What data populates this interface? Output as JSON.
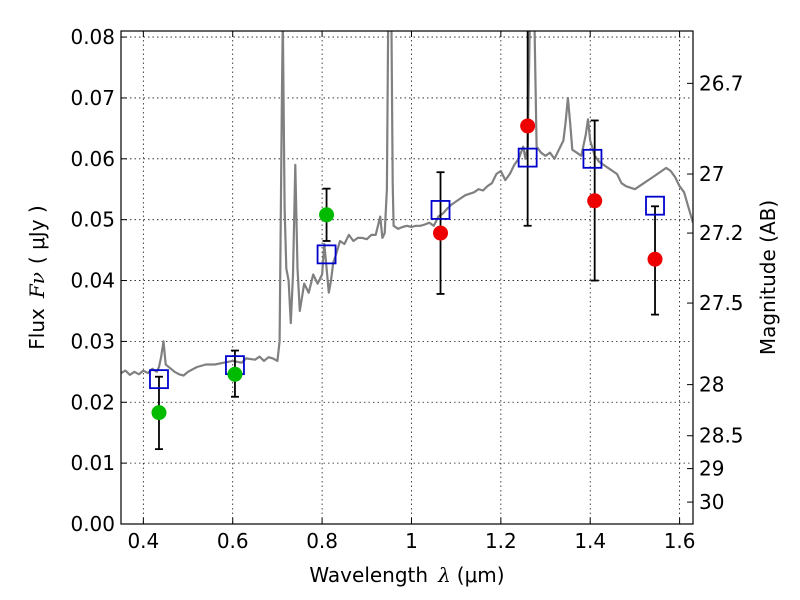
{
  "chart_data": {
    "type": "scatter",
    "title": "",
    "xlabel": {
      "prefix": "Wavelength",
      "math": "λ",
      "unit": "(μm)"
    },
    "ylabel": {
      "prefix": "Flux",
      "math": "Fν",
      "unit": "( μJy )"
    },
    "y2label": "Magnitude (AB)",
    "xlim": [
      0.35,
      1.63
    ],
    "ylim": [
      0.0,
      0.081
    ],
    "grid": true,
    "x_ticks": [
      {
        "value": 0.4,
        "label": "0.4"
      },
      {
        "value": 0.6,
        "label": "0.6"
      },
      {
        "value": 0.8,
        "label": "0.8"
      },
      {
        "value": 1.0,
        "label": "1"
      },
      {
        "value": 1.2,
        "label": "1.2"
      },
      {
        "value": 1.4,
        "label": "1.4"
      },
      {
        "value": 1.6,
        "label": "1.6"
      }
    ],
    "y_ticks": [
      {
        "value": 0.0,
        "label": "0.00"
      },
      {
        "value": 0.01,
        "label": "0.01"
      },
      {
        "value": 0.02,
        "label": "0.02"
      },
      {
        "value": 0.03,
        "label": "0.03"
      },
      {
        "value": 0.04,
        "label": "0.04"
      },
      {
        "value": 0.05,
        "label": "0.05"
      },
      {
        "value": 0.06,
        "label": "0.06"
      },
      {
        "value": 0.07,
        "label": "0.07"
      },
      {
        "value": 0.08,
        "label": "0.08"
      }
    ],
    "y2_ticks": [
      {
        "flux": 0.0724,
        "label": "26.7"
      },
      {
        "flux": 0.0575,
        "label": "27"
      },
      {
        "flux": 0.0478,
        "label": "27.2"
      },
      {
        "flux": 0.0363,
        "label": "27.5"
      },
      {
        "flux": 0.0229,
        "label": "28"
      },
      {
        "flux": 0.0145,
        "label": "28.5"
      },
      {
        "flux": 0.0091,
        "label": "29"
      },
      {
        "flux": 0.0036,
        "label": "30"
      }
    ],
    "colors": {
      "spectrum": "#808080",
      "model_box": "#0000cc",
      "green_point": "#00bb00",
      "red_point": "#ee0000",
      "error_bar": "#000000"
    },
    "series": [
      {
        "kind": "line",
        "color": "#808080",
        "points": [
          [
            0.35,
            0.0248
          ],
          [
            0.36,
            0.0252
          ],
          [
            0.37,
            0.0245
          ],
          [
            0.38,
            0.025
          ],
          [
            0.39,
            0.0246
          ],
          [
            0.4,
            0.0252
          ],
          [
            0.41,
            0.0248
          ],
          [
            0.42,
            0.0255
          ],
          [
            0.43,
            0.025
          ],
          [
            0.435,
            0.0258
          ],
          [
            0.44,
            0.0275
          ],
          [
            0.445,
            0.03
          ],
          [
            0.45,
            0.0262
          ],
          [
            0.46,
            0.0256
          ],
          [
            0.47,
            0.025
          ],
          [
            0.48,
            0.0246
          ],
          [
            0.49,
            0.0244
          ],
          [
            0.5,
            0.025
          ],
          [
            0.52,
            0.0258
          ],
          [
            0.54,
            0.0262
          ],
          [
            0.56,
            0.0262
          ],
          [
            0.58,
            0.0265
          ],
          [
            0.6,
            0.0268
          ],
          [
            0.62,
            0.0265
          ],
          [
            0.63,
            0.0272
          ],
          [
            0.65,
            0.027
          ],
          [
            0.66,
            0.0275
          ],
          [
            0.67,
            0.0268
          ],
          [
            0.68,
            0.0274
          ],
          [
            0.69,
            0.0272
          ],
          [
            0.7,
            0.0268
          ],
          [
            0.705,
            0.03
          ],
          [
            0.71,
            0.07
          ],
          [
            0.712,
            0.083
          ],
          [
            0.716,
            0.052
          ],
          [
            0.72,
            0.042
          ],
          [
            0.725,
            0.04
          ],
          [
            0.73,
            0.033
          ],
          [
            0.735,
            0.041
          ],
          [
            0.74,
            0.059
          ],
          [
            0.745,
            0.042
          ],
          [
            0.75,
            0.035
          ],
          [
            0.76,
            0.0395
          ],
          [
            0.77,
            0.038
          ],
          [
            0.78,
            0.041
          ],
          [
            0.79,
            0.0395
          ],
          [
            0.8,
            0.041
          ],
          [
            0.805,
            0.046
          ],
          [
            0.81,
            0.042
          ],
          [
            0.815,
            0.038
          ],
          [
            0.82,
            0.04
          ],
          [
            0.825,
            0.043
          ],
          [
            0.83,
            0.044
          ],
          [
            0.84,
            0.0465
          ],
          [
            0.85,
            0.046
          ],
          [
            0.86,
            0.0475
          ],
          [
            0.87,
            0.0465
          ],
          [
            0.88,
            0.047
          ],
          [
            0.89,
            0.047
          ],
          [
            0.9,
            0.0468
          ],
          [
            0.91,
            0.0475
          ],
          [
            0.92,
            0.0475
          ],
          [
            0.93,
            0.0505
          ],
          [
            0.935,
            0.047
          ],
          [
            0.94,
            0.0478
          ],
          [
            0.945,
            0.055
          ],
          [
            0.948,
            0.083
          ],
          [
            0.955,
            0.083
          ],
          [
            0.958,
            0.056
          ],
          [
            0.96,
            0.049
          ],
          [
            0.97,
            0.0485
          ],
          [
            0.98,
            0.0488
          ],
          [
            0.99,
            0.049
          ],
          [
            1.0,
            0.0488
          ],
          [
            1.01,
            0.049
          ],
          [
            1.02,
            0.049
          ],
          [
            1.03,
            0.0492
          ],
          [
            1.04,
            0.0495
          ],
          [
            1.05,
            0.049
          ],
          [
            1.06,
            0.0505
          ],
          [
            1.07,
            0.051
          ],
          [
            1.08,
            0.0518
          ],
          [
            1.09,
            0.0525
          ],
          [
            1.1,
            0.053
          ],
          [
            1.12,
            0.054
          ],
          [
            1.14,
            0.0545
          ],
          [
            1.15,
            0.055
          ],
          [
            1.16,
            0.0548
          ],
          [
            1.17,
            0.0555
          ],
          [
            1.18,
            0.056
          ],
          [
            1.19,
            0.0575
          ],
          [
            1.2,
            0.058
          ],
          [
            1.21,
            0.0565
          ],
          [
            1.22,
            0.0575
          ],
          [
            1.23,
            0.059
          ],
          [
            1.24,
            0.06
          ],
          [
            1.25,
            0.062
          ],
          [
            1.255,
            0.06
          ],
          [
            1.26,
            0.062
          ],
          [
            1.265,
            0.083
          ],
          [
            1.275,
            0.083
          ],
          [
            1.28,
            0.062
          ],
          [
            1.29,
            0.061
          ],
          [
            1.3,
            0.0605
          ],
          [
            1.31,
            0.061
          ],
          [
            1.32,
            0.06
          ],
          [
            1.33,
            0.0615
          ],
          [
            1.34,
            0.063
          ],
          [
            1.345,
            0.066
          ],
          [
            1.35,
            0.07
          ],
          [
            1.355,
            0.066
          ],
          [
            1.36,
            0.0615
          ],
          [
            1.37,
            0.061
          ],
          [
            1.38,
            0.0605
          ],
          [
            1.39,
            0.064
          ],
          [
            1.395,
            0.0665
          ],
          [
            1.4,
            0.063
          ],
          [
            1.41,
            0.0605
          ],
          [
            1.42,
            0.0595
          ],
          [
            1.43,
            0.059
          ],
          [
            1.44,
            0.0585
          ],
          [
            1.45,
            0.058
          ],
          [
            1.46,
            0.0575
          ],
          [
            1.47,
            0.056
          ],
          [
            1.48,
            0.0555
          ],
          [
            1.5,
            0.055
          ],
          [
            1.52,
            0.056
          ],
          [
            1.54,
            0.057
          ],
          [
            1.55,
            0.0575
          ],
          [
            1.56,
            0.058
          ],
          [
            1.57,
            0.0585
          ],
          [
            1.58,
            0.058
          ],
          [
            1.59,
            0.057
          ],
          [
            1.6,
            0.0555
          ],
          [
            1.61,
            0.0545
          ],
          [
            1.62,
            0.052
          ],
          [
            1.63,
            0.0495
          ]
        ]
      },
      {
        "kind": "open-square",
        "color": "#0000cc",
        "points": [
          [
            0.435,
            0.0238
          ],
          [
            0.605,
            0.0261
          ],
          [
            0.81,
            0.0443
          ],
          [
            1.065,
            0.0516
          ],
          [
            1.26,
            0.0602
          ],
          [
            1.405,
            0.06
          ],
          [
            1.545,
            0.0523
          ]
        ]
      },
      {
        "kind": "point",
        "color": "#00bb00",
        "points": [
          [
            0.435,
            0.0183
          ],
          [
            0.605,
            0.0246
          ],
          [
            0.81,
            0.0508
          ]
        ]
      },
      {
        "kind": "point",
        "color": "#ee0000",
        "points": [
          [
            1.065,
            0.0478
          ],
          [
            1.26,
            0.0654
          ],
          [
            1.41,
            0.0531
          ],
          [
            1.545,
            0.0435
          ]
        ]
      },
      {
        "kind": "error-bar",
        "color": "#000000",
        "points": [
          [
            0.435,
            0.0123,
            0.0242
          ],
          [
            0.605,
            0.0209,
            0.0285
          ],
          [
            0.81,
            0.0465,
            0.0551
          ],
          [
            1.065,
            0.0378,
            0.0578
          ],
          [
            1.26,
            0.049,
            0.083
          ],
          [
            1.41,
            0.04,
            0.0663
          ],
          [
            1.545,
            0.0344,
            0.0522
          ]
        ]
      }
    ]
  }
}
